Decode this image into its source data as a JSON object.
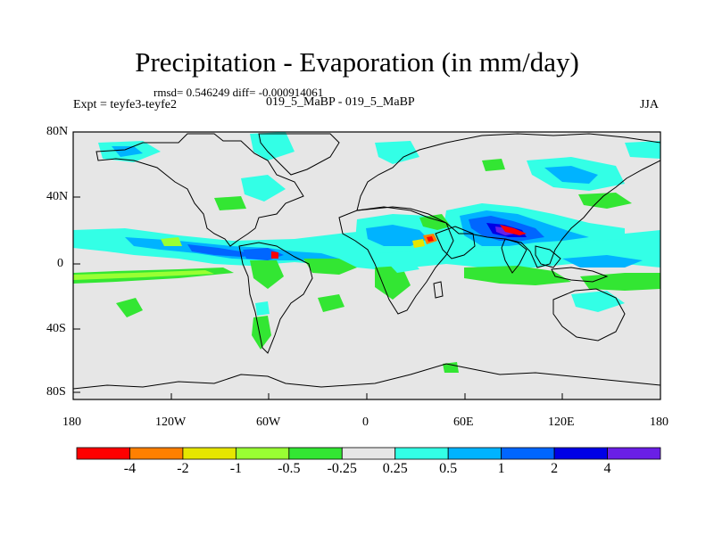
{
  "title": "Precipitation - Evaporation (in mm/day)",
  "stats": "rmsd= 0.546249 diff= -0.000914061",
  "experiment": "Expt = teyfe3-teyfe2",
  "periods": "019_5_MaBP - 019_5_MaBP",
  "season": "JJA",
  "lat_labels": [
    "80N",
    "40N",
    "0",
    "40S",
    "80S"
  ],
  "lon_labels": [
    "180",
    "120W",
    "60W",
    "0",
    "60E",
    "120E",
    "180"
  ],
  "colorbar": {
    "colors": [
      "#ff0000",
      "#ff8000",
      "#e6e600",
      "#99ff33",
      "#33e633",
      "#e6e6e6",
      "#33ffe6",
      "#00b3ff",
      "#0066ff",
      "#0000e6",
      "#6a1fe6"
    ],
    "labels": [
      "-4",
      "-2",
      "-1",
      "-0.5",
      "-0.25",
      "0.25",
      "0.5",
      "1",
      "2",
      "4"
    ]
  },
  "map_data": {
    "background_color": "#e6e6e6",
    "lat_range": [
      -90,
      90
    ],
    "lon_range": [
      -180,
      180
    ],
    "features": [
      {
        "name": "ITCZ Pacific/Atlantic band",
        "lon": [
          -140,
          -30
        ],
        "lat": [
          0,
          12
        ],
        "category": "0.5 to 2"
      },
      {
        "name": "Southern tropical Pacific dry band",
        "lon": [
          -180,
          -90
        ],
        "lat": [
          -8,
          -4
        ],
        "category": "-0.5 to -0.25"
      },
      {
        "name": "Indian monsoon anomaly",
        "lon": [
          60,
          90
        ],
        "lat": [
          10,
          30
        ],
        "category": "1 to 4"
      },
      {
        "name": "Arabian/Sahel negative spots",
        "lon": [
          20,
          60
        ],
        "lat": [
          8,
          18
        ],
        "category": "-4 to -1"
      }
    ]
  }
}
